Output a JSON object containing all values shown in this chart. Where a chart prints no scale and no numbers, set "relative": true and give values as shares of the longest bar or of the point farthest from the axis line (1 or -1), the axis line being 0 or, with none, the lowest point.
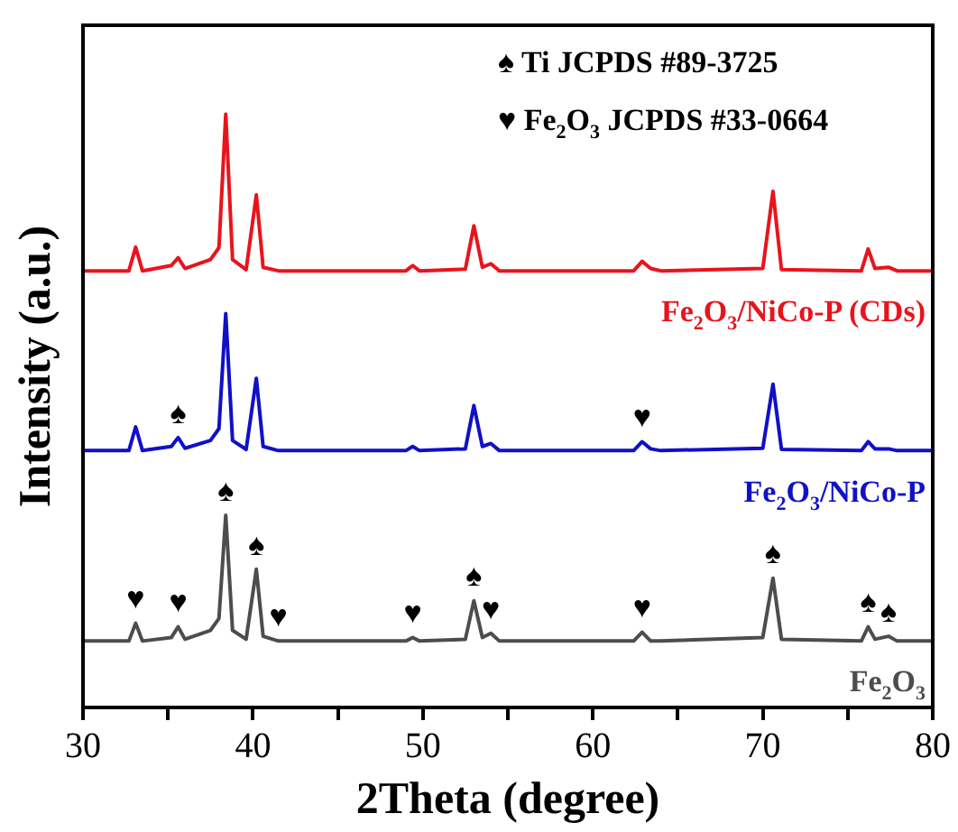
{
  "chart_data": {
    "type": "line",
    "relative": true,
    "xlabel": "2Theta (degree)",
    "ylabel": "Intensity (a.u.)",
    "xlim": [
      30,
      80
    ],
    "xticks": [
      30,
      {
        "value": 35,
        "label": null
      },
      40,
      {
        "value": 45,
        "label": null
      },
      50,
      {
        "value": 55,
        "label": null
      },
      60,
      {
        "value": 65,
        "label": null
      },
      70,
      {
        "value": 75,
        "label": null
      },
      80
    ],
    "grid": false,
    "legend": false,
    "marker": "none",
    "line_style": "solid",
    "x": [
      30,
      32.7,
      33.1,
      33.5,
      35.2,
      35.6,
      36.0,
      37.5,
      38.0,
      38.4,
      38.8,
      39.6,
      40.2,
      40.6,
      41.5,
      49.0,
      49.4,
      49.8,
      52.5,
      53.0,
      53.5,
      54.0,
      54.5,
      62.4,
      62.9,
      63.4,
      64.0,
      70.0,
      70.6,
      71.1,
      75.8,
      76.2,
      76.6,
      77.4,
      77.9,
      80
    ],
    "series": [
      {
        "name": "Fe$_{2}$O$_{3}$/NiCo-P (CDs)",
        "color": "#e8141c",
        "values": [
          0.736,
          0.736,
          0.776,
          0.736,
          0.745,
          0.758,
          0.74,
          0.755,
          0.775,
          1,
          0.755,
          0.738,
          0.864,
          0.742,
          0.736,
          0.736,
          0.745,
          0.736,
          0.739,
          0.812,
          0.742,
          0.748,
          0.736,
          0.736,
          0.752,
          0.74,
          0.736,
          0.74,
          0.87,
          0.738,
          0.736,
          0.773,
          0.74,
          0.742,
          0.736,
          0.736
        ]
      },
      {
        "name": "Fe$_{2}$O$_{3}$/NiCo-P",
        "color": "#1010c8",
        "values": [
          0.433,
          0.433,
          0.473,
          0.433,
          0.44,
          0.455,
          0.437,
          0.45,
          0.47,
          0.664,
          0.45,
          0.435,
          0.555,
          0.44,
          0.433,
          0.433,
          0.44,
          0.433,
          0.436,
          0.509,
          0.44,
          0.445,
          0.433,
          0.433,
          0.448,
          0.436,
          0.433,
          0.437,
          0.545,
          0.435,
          0.433,
          0.448,
          0.436,
          0.436,
          0.433,
          0.433
        ]
      },
      {
        "name": "Fe$_{2}$O$_{3}$",
        "color": "#4d4d4d",
        "values": [
          0.112,
          0.112,
          0.142,
          0.112,
          0.118,
          0.136,
          0.115,
          0.13,
          0.15,
          0.324,
          0.13,
          0.115,
          0.233,
          0.12,
          0.112,
          0.112,
          0.118,
          0.112,
          0.115,
          0.18,
          0.118,
          0.125,
          0.112,
          0.112,
          0.127,
          0.112,
          0.112,
          0.118,
          0.218,
          0.115,
          0.112,
          0.136,
          0.115,
          0.12,
          0.112,
          0.112
        ]
      }
    ],
    "annotations": [
      "♠ Ti JCPDS #89-3725",
      "♥ Fe$_{2}$O$_{3}$ JCPDS #33-0664",
      {
        "text": "♥",
        "x": 33.1,
        "y": 0.142
      },
      {
        "text": "♥",
        "x": 35.6,
        "y": 0.136
      },
      {
        "text": "♠",
        "x": 38.4,
        "y": 0.324
      },
      {
        "text": "♠",
        "x": 40.2,
        "y": 0.233
      },
      {
        "text": "♥",
        "x": 41.5,
        "y": 0.112
      },
      {
        "text": "♥",
        "x": 49.4,
        "y": 0.118
      },
      {
        "text": "♠",
        "x": 53,
        "y": 0.18
      },
      {
        "text": "♥",
        "x": 54.0,
        "y": 0.125
      },
      {
        "text": "♥",
        "x": 62.9,
        "y": 0.127
      },
      {
        "text": "♠",
        "x": 70.6,
        "y": 0.218
      },
      {
        "text": "♠",
        "x": 76.2,
        "y": 0.136
      },
      {
        "text": "♠",
        "x": 77.4,
        "y": 0.12
      },
      {
        "text": "♠",
        "x": 35.6,
        "y": 0.455
      },
      {
        "text": "♥",
        "x": 62.9,
        "y": 0.448
      }
    ]
  }
}
